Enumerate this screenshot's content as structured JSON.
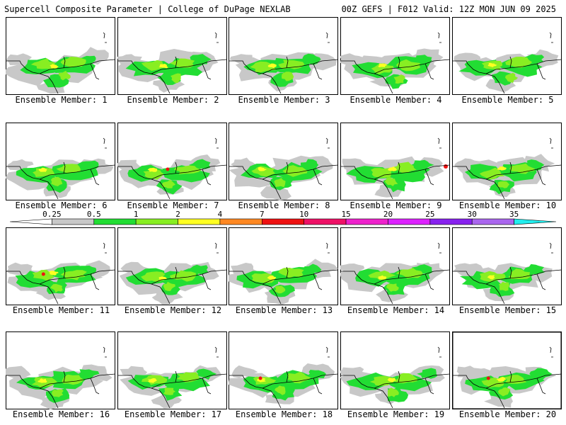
{
  "header": {
    "left_title": "Supercell Composite Parameter | College of DuPage NEXLAB",
    "right_title": "00Z GEFS | F012 Valid: 12Z MON JUN 09 2025"
  },
  "members": [
    {
      "label": "Ensemble Member: 1"
    },
    {
      "label": "Ensemble Member: 2"
    },
    {
      "label": "Ensemble Member: 3"
    },
    {
      "label": "Ensemble Member: 4"
    },
    {
      "label": "Ensemble Member: 5"
    },
    {
      "label": "Ensemble Member: 6"
    },
    {
      "label": "Ensemble Member: 7"
    },
    {
      "label": "Ensemble Member: 8"
    },
    {
      "label": "Ensemble Member: 9"
    },
    {
      "label": "Ensemble Member: 10"
    },
    {
      "label": "Ensemble Member: 11"
    },
    {
      "label": "Ensemble Member: 12"
    },
    {
      "label": "Ensemble Member: 13"
    },
    {
      "label": "Ensemble Member: 14"
    },
    {
      "label": "Ensemble Member: 15"
    },
    {
      "label": "Ensemble Member: 16"
    },
    {
      "label": "Ensemble Member: 17"
    },
    {
      "label": "Ensemble Member: 18"
    },
    {
      "label": "Ensemble Member: 19"
    },
    {
      "label": "Ensemble Member: 20"
    }
  ],
  "colorbar": {
    "ticks": [
      "0.25",
      "0.5",
      "1",
      "2",
      "4",
      "7",
      "10",
      "15",
      "20",
      "25",
      "30",
      "35"
    ],
    "colors": [
      "#ffffff",
      "#c8c8c8",
      "#22dd33",
      "#88ee22",
      "#ffff22",
      "#ff8822",
      "#ee1111",
      "#ee1166",
      "#ee22cc",
      "#dd22ff",
      "#8822ee",
      "#aa66ee",
      "#22eeee"
    ]
  }
}
